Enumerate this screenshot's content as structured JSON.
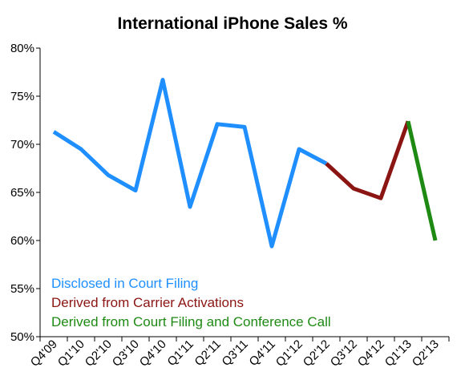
{
  "chart_data": {
    "type": "line",
    "title": "International iPhone Sales %",
    "xlabel": "",
    "ylabel": "",
    "categories": [
      "Q4'09",
      "Q1'10",
      "Q2'10",
      "Q3'10",
      "Q4'10",
      "Q1'11",
      "Q2'11",
      "Q3'11",
      "Q4'11",
      "Q1'12",
      "Q2'12",
      "Q3'12",
      "Q4'12",
      "Q1'13",
      "Q2'13"
    ],
    "ylim": [
      50,
      80
    ],
    "yticks": [
      50,
      55,
      60,
      65,
      70,
      75,
      80
    ],
    "ytick_labels": [
      "50%",
      "55%",
      "60%",
      "65%",
      "70%",
      "75%",
      "80%"
    ],
    "grid": false,
    "legend_position": "bottom-left",
    "series": [
      {
        "name": "Disclosed in Court Filing",
        "color": "#1f8fff",
        "points": [
          {
            "x": "Q4'09",
            "y": 71.3
          },
          {
            "x": "Q1'10",
            "y": 69.5
          },
          {
            "x": "Q2'10",
            "y": 66.8
          },
          {
            "x": "Q3'10",
            "y": 65.2
          },
          {
            "x": "Q4'10",
            "y": 76.7
          },
          {
            "x": "Q1'11",
            "y": 63.5
          },
          {
            "x": "Q2'11",
            "y": 72.1
          },
          {
            "x": "Q3'11",
            "y": 71.8
          },
          {
            "x": "Q4'11",
            "y": 59.4
          },
          {
            "x": "Q1'12",
            "y": 69.5
          },
          {
            "x": "Q2'12",
            "y": 68.0
          }
        ]
      },
      {
        "name": "Derived from Carrier Activations",
        "color": "#8b1512",
        "points": [
          {
            "x": "Q2'12",
            "y": 68.0
          },
          {
            "x": "Q3'12",
            "y": 65.4
          },
          {
            "x": "Q4'12",
            "y": 64.4
          },
          {
            "x": "Q1'13",
            "y": 72.4
          }
        ]
      },
      {
        "name": "Derived from Court Filing and Conference Call",
        "color": "#1e8a14",
        "points": [
          {
            "x": "Q1'13",
            "y": 72.4
          },
          {
            "x": "Q2'13",
            "y": 60.0
          }
        ]
      }
    ]
  }
}
